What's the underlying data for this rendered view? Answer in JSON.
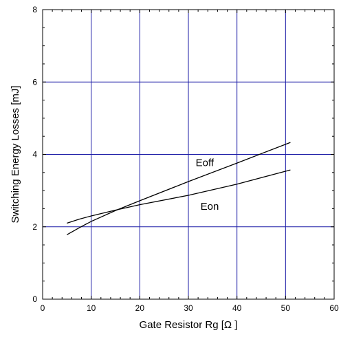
{
  "chart_data": {
    "type": "line",
    "title": "",
    "xlabel": "Gate Resistor Rg [Ω ]",
    "ylabel": "Switching Energy Losses [mJ]",
    "xlim": [
      0,
      60
    ],
    "ylim": [
      0,
      8
    ],
    "xticks": [
      0,
      10,
      20,
      30,
      40,
      50,
      60
    ],
    "yticks": [
      0,
      2,
      4,
      6,
      8
    ],
    "grid": true,
    "grid_color": "#1a1aa6",
    "line_color": "#000000",
    "series": [
      {
        "name": "Eoff",
        "x": [
          5,
          7.5,
          10,
          15,
          20,
          30,
          40,
          51
        ],
        "y": [
          1.78,
          1.97,
          2.15,
          2.45,
          2.72,
          3.25,
          3.76,
          4.33
        ]
      },
      {
        "name": "Eon",
        "x": [
          5,
          7.5,
          10,
          15,
          20,
          30,
          40,
          51
        ],
        "y": [
          2.1,
          2.21,
          2.3,
          2.46,
          2.61,
          2.87,
          3.18,
          3.57
        ]
      }
    ],
    "annotations": [
      {
        "text": "Eoff",
        "x": 31.5,
        "y": 3.68
      },
      {
        "text": "Eon",
        "x": 32.5,
        "y": 2.47
      }
    ]
  }
}
